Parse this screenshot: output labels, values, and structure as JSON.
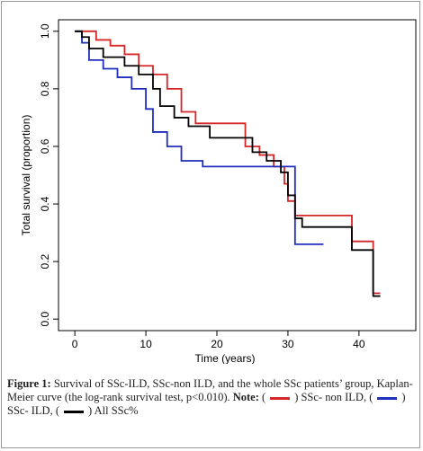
{
  "chart_data": {
    "type": "line",
    "step": true,
    "x_label": "Time (years)",
    "y_label": "Total survival (proportion)",
    "xlim": [
      -2.3,
      48
    ],
    "ylim": [
      -0.04,
      1.04
    ],
    "xticks": [
      0,
      10,
      20,
      30,
      40
    ],
    "yticks": [
      {
        "value": 0,
        "label": "0.0"
      },
      0.2,
      0.4,
      0.6,
      0.8,
      {
        "value": 1,
        "label": "1.0"
      }
    ],
    "series": [
      {
        "name": "SSc- non ILD",
        "color": "#d62728",
        "x": [
          0,
          3,
          5,
          7,
          9,
          11,
          13,
          15,
          17,
          24,
          26,
          28,
          29.5,
          30,
          31,
          39,
          42,
          43
        ],
        "values": [
          1.0,
          0.97,
          0.95,
          0.92,
          0.88,
          0.85,
          0.8,
          0.72,
          0.68,
          0.6,
          0.57,
          0.53,
          0.47,
          0.41,
          0.36,
          0.27,
          0.09,
          0.09
        ]
      },
      {
        "name": "SSc- ILD",
        "color": "#1f2fbf",
        "x": [
          0,
          1,
          2,
          4,
          6,
          8,
          10,
          11,
          13,
          15,
          18,
          31,
          35
        ],
        "values": [
          1.0,
          0.96,
          0.9,
          0.87,
          0.84,
          0.8,
          0.73,
          0.65,
          0.6,
          0.55,
          0.53,
          0.26,
          0.26
        ]
      },
      {
        "name": "All SSc%",
        "color": "#000000",
        "x": [
          0,
          1,
          2,
          4,
          7,
          9,
          11,
          12,
          14,
          16,
          19,
          25,
          27,
          29,
          30,
          31,
          32,
          39,
          42,
          43
        ],
        "values": [
          1.0,
          0.98,
          0.94,
          0.91,
          0.88,
          0.85,
          0.8,
          0.74,
          0.7,
          0.67,
          0.63,
          0.58,
          0.55,
          0.51,
          0.43,
          0.35,
          0.32,
          0.24,
          0.08,
          0.08
        ]
      }
    ]
  },
  "caption": {
    "label": "Figure 1:",
    "text": "Survival of SSc-ILD, SSc-non ILD, and the whole SSc patients’ group, Kaplan-Meier curve (the log-rank survival test, p<0.010).",
    "note": "Note:",
    "open": "(",
    "close": ")",
    "separator": ","
  }
}
